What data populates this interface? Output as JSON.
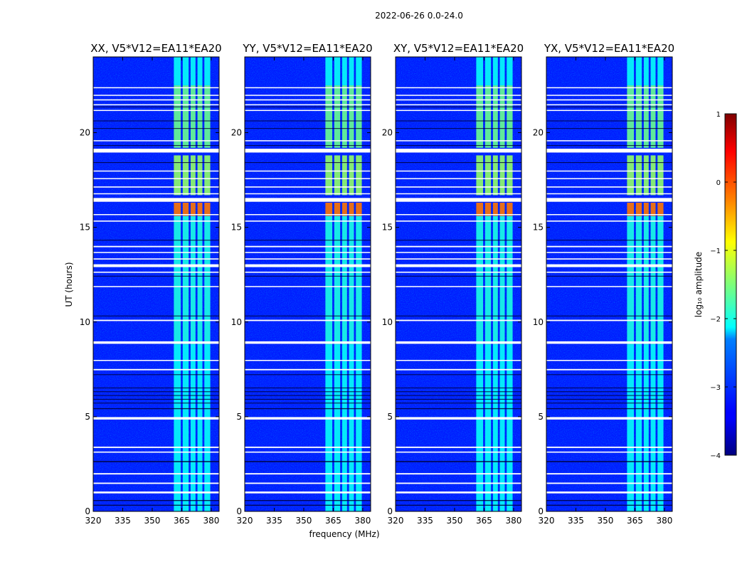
{
  "chart_data": {
    "type": "heatmap",
    "suptitle": "2022-06-26 0.0-24.0",
    "panels": [
      {
        "title": "XX, V5*V12=EA11*EA20"
      },
      {
        "title": "YY, V5*V12=EA11*EA20"
      },
      {
        "title": "XY, V5*V12=EA11*EA20"
      },
      {
        "title": "YX, V5*V12=EA11*EA20"
      }
    ],
    "xlabel": "frequency (MHz)",
    "ylabel": "UT (hours)",
    "xlim": [
      320,
      384
    ],
    "ylim": [
      0,
      24
    ],
    "xticks": [
      320,
      335,
      350,
      365,
      380
    ],
    "yticks": [
      0,
      5,
      10,
      15,
      20
    ],
    "colorbar": {
      "label": "log₁₀ amplitude",
      "range": [
        -4,
        1
      ],
      "ticks": [
        1,
        0,
        -1,
        -2,
        -3,
        -4
      ],
      "tick_labels": [
        "1",
        "0",
        "−1",
        "−2",
        "−3",
        "−4"
      ],
      "colormap": "jet"
    },
    "background_level": -3.2,
    "rfi_bands_mhz": [
      [
        361.0,
        364.5
      ],
      [
        365.5,
        368.5
      ],
      [
        369.5,
        372.0
      ],
      [
        373.0,
        375.5
      ],
      [
        376.5,
        379.5
      ]
    ],
    "rfi_time_blocks": [
      {
        "t": [
          0.0,
          8.8
        ],
        "level": -2.1
      },
      {
        "t": [
          8.8,
          15.6
        ],
        "level": -2.0
      },
      {
        "t": [
          15.6,
          16.3
        ],
        "level": -0.2
      },
      {
        "t": [
          16.7,
          18.8
        ],
        "level": -1.4
      },
      {
        "t": [
          19.2,
          22.5
        ],
        "level": -1.6
      },
      {
        "t": [
          22.5,
          24.0
        ],
        "level": -2.1
      }
    ],
    "flagged_intervals_hours": [
      [
        0.95,
        1.05
      ],
      [
        1.45,
        1.52
      ],
      [
        1.95,
        2.02
      ],
      [
        3.1,
        3.16
      ],
      [
        3.35,
        3.42
      ],
      [
        4.85,
        4.98
      ],
      [
        7.45,
        7.52
      ],
      [
        7.95,
        8.0
      ],
      [
        8.85,
        8.98
      ],
      [
        10.05,
        10.12
      ],
      [
        11.85,
        11.9
      ],
      [
        12.6,
        12.66
      ],
      [
        12.9,
        13.05
      ],
      [
        13.3,
        13.36
      ],
      [
        13.65,
        13.7
      ],
      [
        13.95,
        14.02
      ],
      [
        15.3,
        15.36
      ],
      [
        15.65,
        15.7
      ],
      [
        16.35,
        16.55
      ],
      [
        16.75,
        16.8
      ],
      [
        17.1,
        17.16
      ],
      [
        17.55,
        17.6
      ],
      [
        17.95,
        18.0
      ],
      [
        18.95,
        19.15
      ],
      [
        19.55,
        19.6
      ],
      [
        21.15,
        21.2
      ],
      [
        21.45,
        21.5
      ],
      [
        21.7,
        21.76
      ],
      [
        21.95,
        22.0
      ],
      [
        22.35,
        22.4
      ]
    ],
    "dark_row_intervals_hours": [
      [
        0.3,
        0.35
      ],
      [
        0.55,
        0.6
      ],
      [
        2.6,
        2.66
      ],
      [
        5.4,
        5.45
      ],
      [
        5.7,
        5.74
      ],
      [
        5.9,
        5.94
      ],
      [
        6.1,
        6.14
      ],
      [
        6.3,
        6.34
      ],
      [
        6.5,
        6.54
      ],
      [
        7.2,
        7.24
      ],
      [
        10.3,
        10.34
      ],
      [
        12.4,
        12.44
      ],
      [
        14.3,
        14.34
      ],
      [
        18.4,
        18.44
      ],
      [
        19.3,
        19.34
      ],
      [
        20.2,
        20.24
      ],
      [
        20.6,
        20.64
      ],
      [
        21.35,
        21.38
      ]
    ]
  }
}
